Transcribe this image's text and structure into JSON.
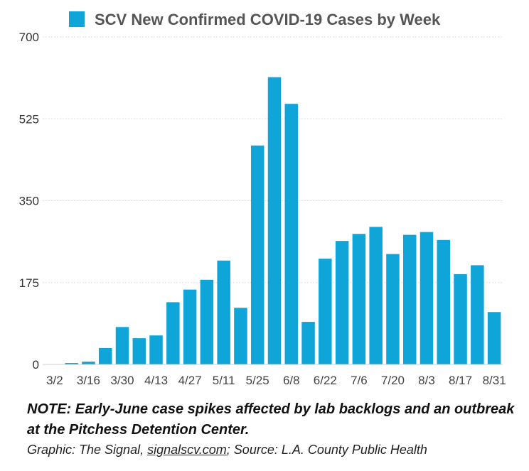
{
  "chart_data": {
    "type": "bar",
    "title": "SCV New Confirmed COVID-19 Cases by Week",
    "legend": {
      "entries": [
        "SCV New Confirmed COVID-19 Cases by Week"
      ],
      "placement": "top"
    },
    "categories": [
      "3/2",
      "3/9",
      "3/16",
      "3/23",
      "3/30",
      "4/6",
      "4/13",
      "4/20",
      "4/27",
      "5/4",
      "5/11",
      "5/18",
      "5/25",
      "6/1",
      "6/8",
      "6/15",
      "6/22",
      "6/29",
      "7/6",
      "7/13",
      "7/20",
      "7/27",
      "8/3",
      "8/10",
      "8/17",
      "8/24",
      "8/31"
    ],
    "tick_labels": [
      "3/2",
      "3/16",
      "3/30",
      "4/13",
      "4/27",
      "5/11",
      "5/25",
      "6/8",
      "6/22",
      "7/6",
      "7/20",
      "8/3",
      "8/17",
      "8/31"
    ],
    "series": [
      {
        "values": [
          0,
          3,
          6,
          35,
          80,
          56,
          62,
          133,
          160,
          181,
          222,
          121,
          468,
          614,
          557,
          91,
          226,
          264,
          279,
          294,
          236,
          277,
          283,
          266,
          193,
          212,
          112
        ]
      }
    ],
    "yticks": [
      0,
      175,
      350,
      525,
      700
    ],
    "ylim": [
      0,
      700
    ],
    "xlabel": "",
    "ylabel": "",
    "grid": true,
    "bar_color": "#10a5d9",
    "grid_color": "#dddddd"
  },
  "footer": {
    "note": "NOTE: Early-June case spikes affected by lab backlogs and an outbreak at the Pitchess Detention Center.",
    "credit_prefix": "Graphic: The Signal, ",
    "credit_link": "signalscv.com",
    "credit_suffix": "; Source: L.A. County Public Health"
  }
}
